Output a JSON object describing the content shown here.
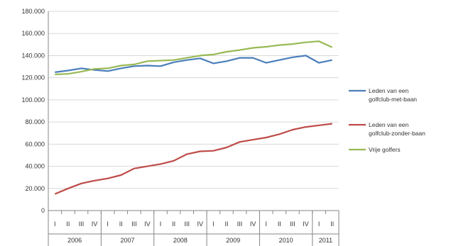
{
  "chart_data": {
    "type": "line",
    "title": "",
    "xlabel": "",
    "ylabel": "",
    "ylim": [
      0,
      180000
    ],
    "yticks": [
      0,
      20000,
      40000,
      60000,
      80000,
      100000,
      120000,
      140000,
      160000,
      180000
    ],
    "ytick_labels": [
      "0",
      "20.000",
      "40.000",
      "60.000",
      "80.000",
      "100.000",
      "120.000",
      "140.000",
      "160.000",
      "180.000"
    ],
    "quarters": [
      "I",
      "II",
      "III",
      "IV",
      "I",
      "II",
      "III",
      "IV",
      "I",
      "II",
      "III",
      "IV",
      "I",
      "II",
      "III",
      "IV",
      "I",
      "II",
      "III",
      "IV",
      "I",
      "II"
    ],
    "years": [
      {
        "label": "2006",
        "start": 0,
        "count": 4
      },
      {
        "label": "2007",
        "start": 4,
        "count": 4
      },
      {
        "label": "2008",
        "start": 8,
        "count": 4
      },
      {
        "label": "2009",
        "start": 12,
        "count": 4
      },
      {
        "label": "2010",
        "start": 16,
        "count": 4
      },
      {
        "label": "2011",
        "start": 20,
        "count": 2
      }
    ],
    "grid": "horizontal",
    "legend_position": "right",
    "series": [
      {
        "name_lines": [
          "Leden van een",
          "golfclub-met-baan"
        ],
        "color": "#4a7ebb",
        "values": [
          125000,
          126500,
          128500,
          127000,
          126000,
          128500,
          130500,
          131000,
          130500,
          134000,
          136000,
          137500,
          133000,
          135000,
          138000,
          138000,
          133500,
          136000,
          138500,
          140000,
          133500,
          136000
        ]
      },
      {
        "name_lines": [
          "Leden van een",
          "golfclub-zonder-baan"
        ],
        "color": "#be4b48",
        "values": [
          15000,
          20000,
          24500,
          27000,
          29000,
          32000,
          38000,
          40000,
          42000,
          45000,
          51000,
          53500,
          54000,
          57000,
          62000,
          64000,
          66000,
          69000,
          73000,
          75500,
          77000,
          78500
        ]
      },
      {
        "name_lines": [
          "Vrije golfers"
        ],
        "color": "#98b954",
        "values": [
          123000,
          123500,
          125500,
          128000,
          128500,
          131000,
          132000,
          135000,
          135500,
          136000,
          138000,
          140000,
          141000,
          143500,
          145000,
          147000,
          148000,
          149500,
          150500,
          152000,
          153000,
          147500
        ]
      }
    ]
  }
}
